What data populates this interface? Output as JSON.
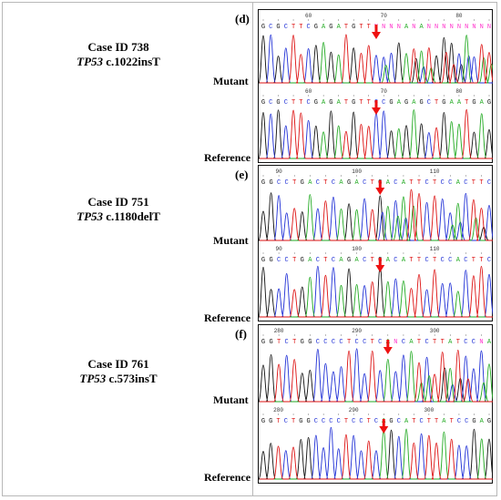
{
  "panels": [
    {
      "letter": "(d)",
      "case_id": "Case ID  738",
      "gene": "TP53",
      "variant": "c.1022insT",
      "mutant_label": "Mutant",
      "reference_label": "Reference",
      "mutant": {
        "sequence": "GCGCTTCGAGATGTTNNNNANANNNNNNNNN",
        "positions": [
          {
            "n": "60",
            "i": 6
          },
          {
            "n": "70",
            "i": 16
          },
          {
            "n": "80",
            "i": 26
          }
        ]
      },
      "reference": {
        "sequence": "GCGCTTCGAGATGTTCCGAGAGCTGAATGAG",
        "positions": [
          {
            "n": "60",
            "i": 6
          },
          {
            "n": "70",
            "i": 16
          },
          {
            "n": "80",
            "i": 26
          }
        ]
      },
      "arrow_index": 15
    },
    {
      "letter": "(e)",
      "case_id": "Case ID  751",
      "gene": "TP53",
      "variant": "c.1180delT",
      "mutant_label": "Mutant",
      "reference_label": "Reference",
      "mutant": {
        "sequence": "GGCCTGACTCAGACTGACATTCTCCACTTC",
        "positions": [
          {
            "n": "90",
            "i": 2
          },
          {
            "n": "100",
            "i": 12
          },
          {
            "n": "110",
            "i": 22
          }
        ]
      },
      "reference": {
        "sequence": "GGCCTGACTCAGACTGACATTCTCCACTTC",
        "positions": [
          {
            "n": "90",
            "i": 2
          },
          {
            "n": "100",
            "i": 12
          },
          {
            "n": "110",
            "i": 22
          }
        ]
      },
      "arrow_index": 15
    },
    {
      "letter": "(f)",
      "case_id": "Case ID  761",
      "gene": "TP53",
      "variant": "c.573insT",
      "mutant_label": "Mutant",
      "reference_label": "Reference",
      "mutant": {
        "sequence": "GGTCTGGCCCCTCCTCANCATCTTATCCNA",
        "positions": [
          {
            "n": "280",
            "i": 2
          },
          {
            "n": "290",
            "i": 12
          },
          {
            "n": "300",
            "i": 22
          }
        ]
      },
      "reference": {
        "sequence": "GGTCTGGCCCCTCCTCAGCATCTTATCCGAG",
        "positions": [
          {
            "n": "280",
            "i": 2
          },
          {
            "n": "290",
            "i": 12
          },
          {
            "n": "300",
            "i": 22
          }
        ]
      },
      "arrow_index": 16
    }
  ],
  "colors": {
    "A": "#22aa22",
    "C": "#1f2fd6",
    "G": "#111111",
    "T": "#dd1111",
    "N": "#ff33cc",
    "arrow": "#ee1111",
    "border": "#b8b8b8"
  }
}
